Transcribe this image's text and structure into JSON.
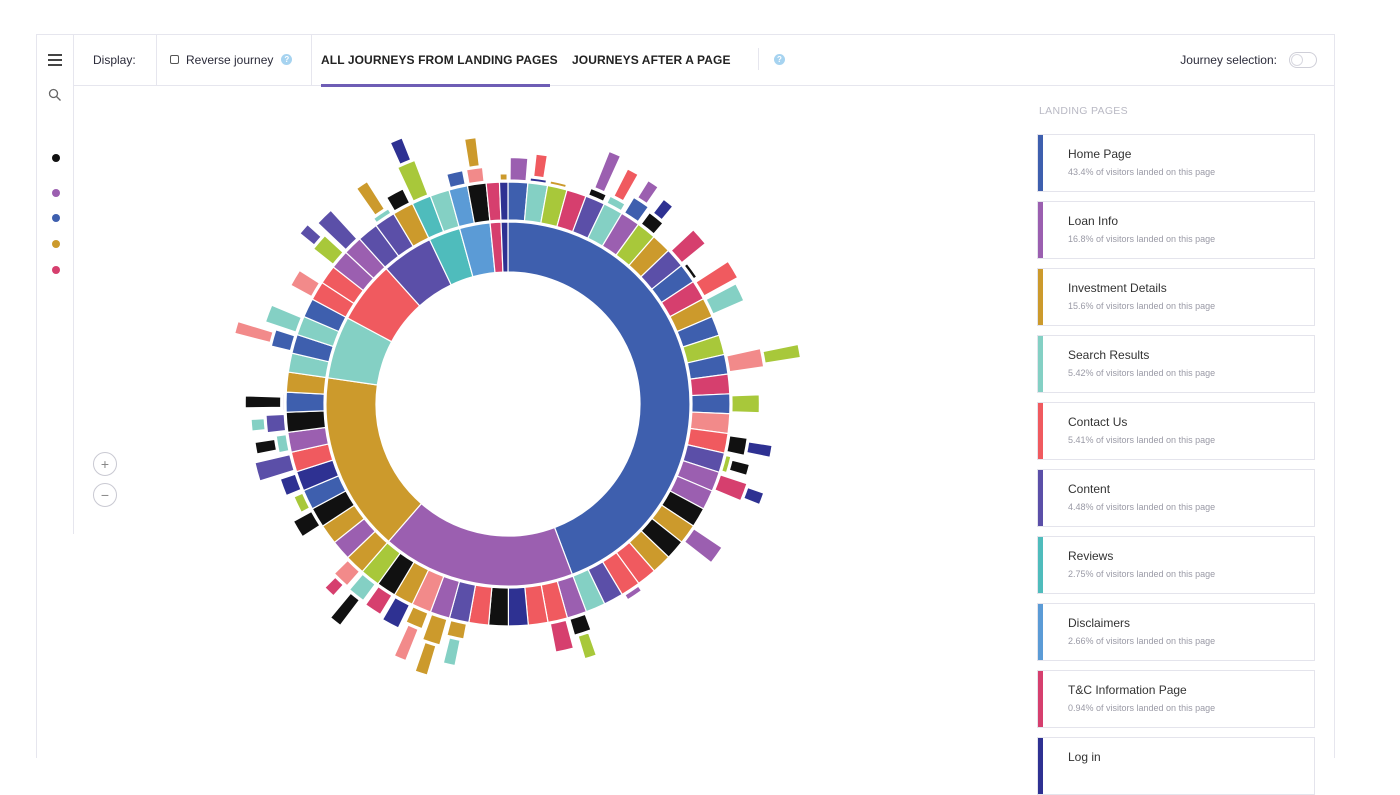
{
  "toolbar": {
    "display_label": "Display:",
    "reverse_label": "Reverse journey",
    "help_mark": "?",
    "tabs": [
      {
        "label": "ALL JOURNEYS FROM LANDING PAGES",
        "active": true
      },
      {
        "label": "JOURNEYS AFTER A PAGE",
        "active": false
      }
    ],
    "journey_selection_label": "Journey selection:"
  },
  "sidebar": {
    "legend_colors": [
      "#111111",
      "#9b5fb0",
      "#3e5fae",
      "#cc9a2c",
      "#d63f6e"
    ]
  },
  "zoom": {
    "in": "+",
    "out": "−"
  },
  "landing_pages": {
    "title": "LANDING PAGES",
    "items": [
      {
        "name": "Home Page",
        "sub": "43.4% of visitors landed on this page",
        "color": "#3e5fae"
      },
      {
        "name": "Loan Info",
        "sub": "16.8% of visitors landed on this page",
        "color": "#9b5fb0"
      },
      {
        "name": "Investment Details",
        "sub": "15.6% of visitors landed on this page",
        "color": "#cc9a2c"
      },
      {
        "name": "Search Results",
        "sub": "5.42% of visitors landed on this page",
        "color": "#84d0c4"
      },
      {
        "name": "Contact Us",
        "sub": "5.41% of visitors landed on this page",
        "color": "#f05a5f"
      },
      {
        "name": "Content",
        "sub": "4.48% of visitors landed on this page",
        "color": "#5b4fa8"
      },
      {
        "name": "Reviews",
        "sub": "2.75% of visitors landed on this page",
        "color": "#4fbcbc"
      },
      {
        "name": "Disclaimers",
        "sub": "2.66% of visitors landed on this page",
        "color": "#5b9bd6"
      },
      {
        "name": "T&C Information Page",
        "sub": "0.94% of visitors landed on this page",
        "color": "#d63f6e"
      },
      {
        "name": "Log in",
        "sub": "",
        "color": "#2e3192"
      }
    ]
  },
  "chart_data": {
    "type": "sunburst",
    "level1": [
      {
        "name": "Home Page",
        "value": 43.4,
        "color": "#3e5fae"
      },
      {
        "name": "Loan Info",
        "value": 16.8,
        "color": "#9b5fb0"
      },
      {
        "name": "Investment Details",
        "value": 15.6,
        "color": "#cc9a2c"
      },
      {
        "name": "Search Results",
        "value": 5.42,
        "color": "#84d0c4"
      },
      {
        "name": "Contact Us",
        "value": 5.41,
        "color": "#f05a5f"
      },
      {
        "name": "Content",
        "value": 4.48,
        "color": "#5b4fa8"
      },
      {
        "name": "Reviews",
        "value": 2.75,
        "color": "#4fbcbc"
      },
      {
        "name": "Disclaimers",
        "value": 2.66,
        "color": "#5b9bd6"
      },
      {
        "name": "T&C Information Page",
        "value": 0.94,
        "color": "#d63f6e"
      },
      {
        "name": "Log in",
        "value": 0.6,
        "color": "#2e3192"
      }
    ]
  }
}
